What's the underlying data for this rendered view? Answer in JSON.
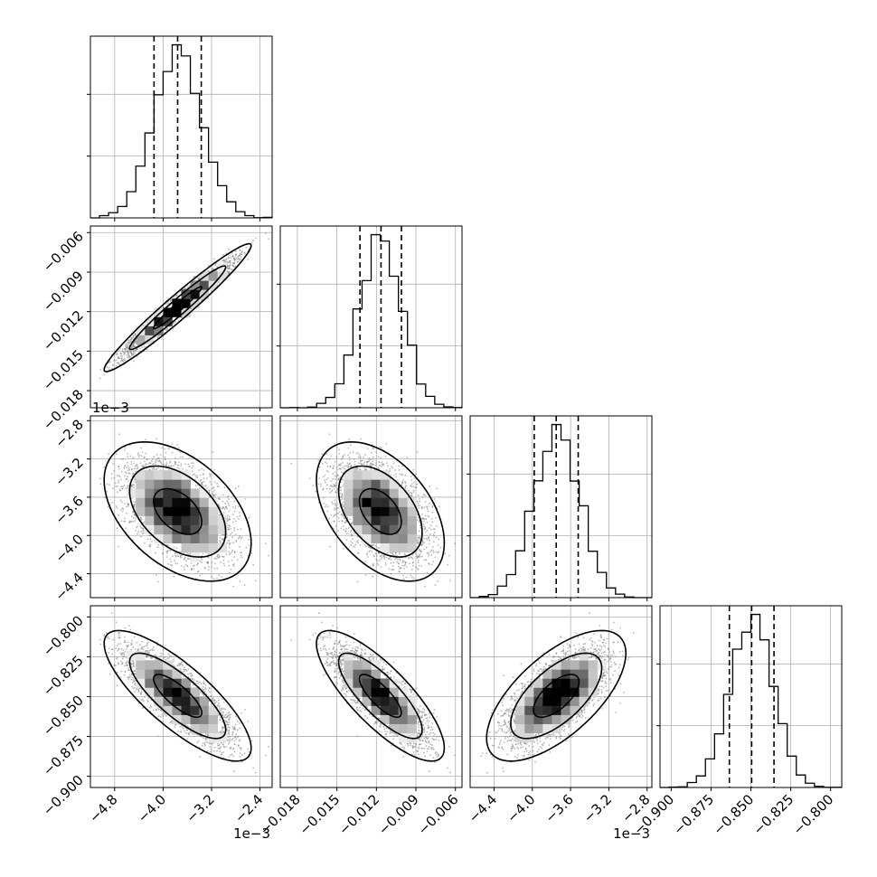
{
  "chart_data": {
    "type": "corner",
    "title": "",
    "grid": true,
    "parameters": [
      {
        "name": "",
        "range": [
          -5.2,
          -2.2
        ],
        "ticks": [
          -4.8,
          -4.0,
          -3.2,
          -2.4
        ],
        "tick_labels": [
          "−4.8",
          "−4.0",
          "−3.2",
          "−2.4"
        ],
        "offset_label": "1e−3",
        "mean": -3.76,
        "std": 0.4,
        "quantiles": [
          -4.15,
          -3.76,
          -3.37
        ]
      },
      {
        "name": "",
        "range": [
          -0.0193,
          -0.0055
        ],
        "ticks": [
          -0.018,
          -0.015,
          -0.012,
          -0.009,
          -0.006
        ],
        "tick_labels": [
          "−0.018",
          "−0.015",
          "−0.012",
          "−0.009",
          "−0.006"
        ],
        "offset_label": "",
        "mean": -0.0117,
        "std": 0.0016,
        "quantiles": [
          -0.01325,
          -0.01165,
          -0.0101
        ]
      },
      {
        "name": "",
        "range": [
          -4.65,
          -2.75
        ],
        "ticks": [
          -4.4,
          -4.0,
          -3.6,
          -3.2,
          -2.8
        ],
        "tick_labels": [
          "−4.4",
          "−4.0",
          "−3.6",
          "−3.2",
          "−2.8"
        ],
        "offset_label": "1e−3",
        "mean": -3.75,
        "std": 0.24,
        "quantiles": [
          -3.98,
          -3.75,
          -3.52
        ]
      },
      {
        "name": "",
        "range": [
          -0.907,
          -0.793
        ],
        "ticks": [
          -0.9,
          -0.875,
          -0.85,
          -0.825,
          -0.8
        ],
        "tick_labels": [
          "−0.900",
          "−0.875",
          "−0.850",
          "−0.825",
          "−0.800"
        ],
        "offset_label": "",
        "mean": -0.8495,
        "std": 0.0135,
        "quantiles": [
          -0.8635,
          -0.8495,
          -0.8355
        ]
      }
    ],
    "correlations": [
      [
        1.0,
        0.97,
        -0.45,
        -0.8
      ],
      [
        0.97,
        1.0,
        -0.45,
        -0.8
      ],
      [
        -0.45,
        -0.45,
        1.0,
        0.65
      ],
      [
        -0.8,
        -0.8,
        0.65,
        1.0
      ]
    ],
    "histogram_bins": 20,
    "contour_levels": [
      0.39,
      0.86,
      0.99
    ],
    "colors": {
      "line": "#000000",
      "scatter": "#7f7f7f",
      "grid": "#b0b0b0"
    }
  }
}
